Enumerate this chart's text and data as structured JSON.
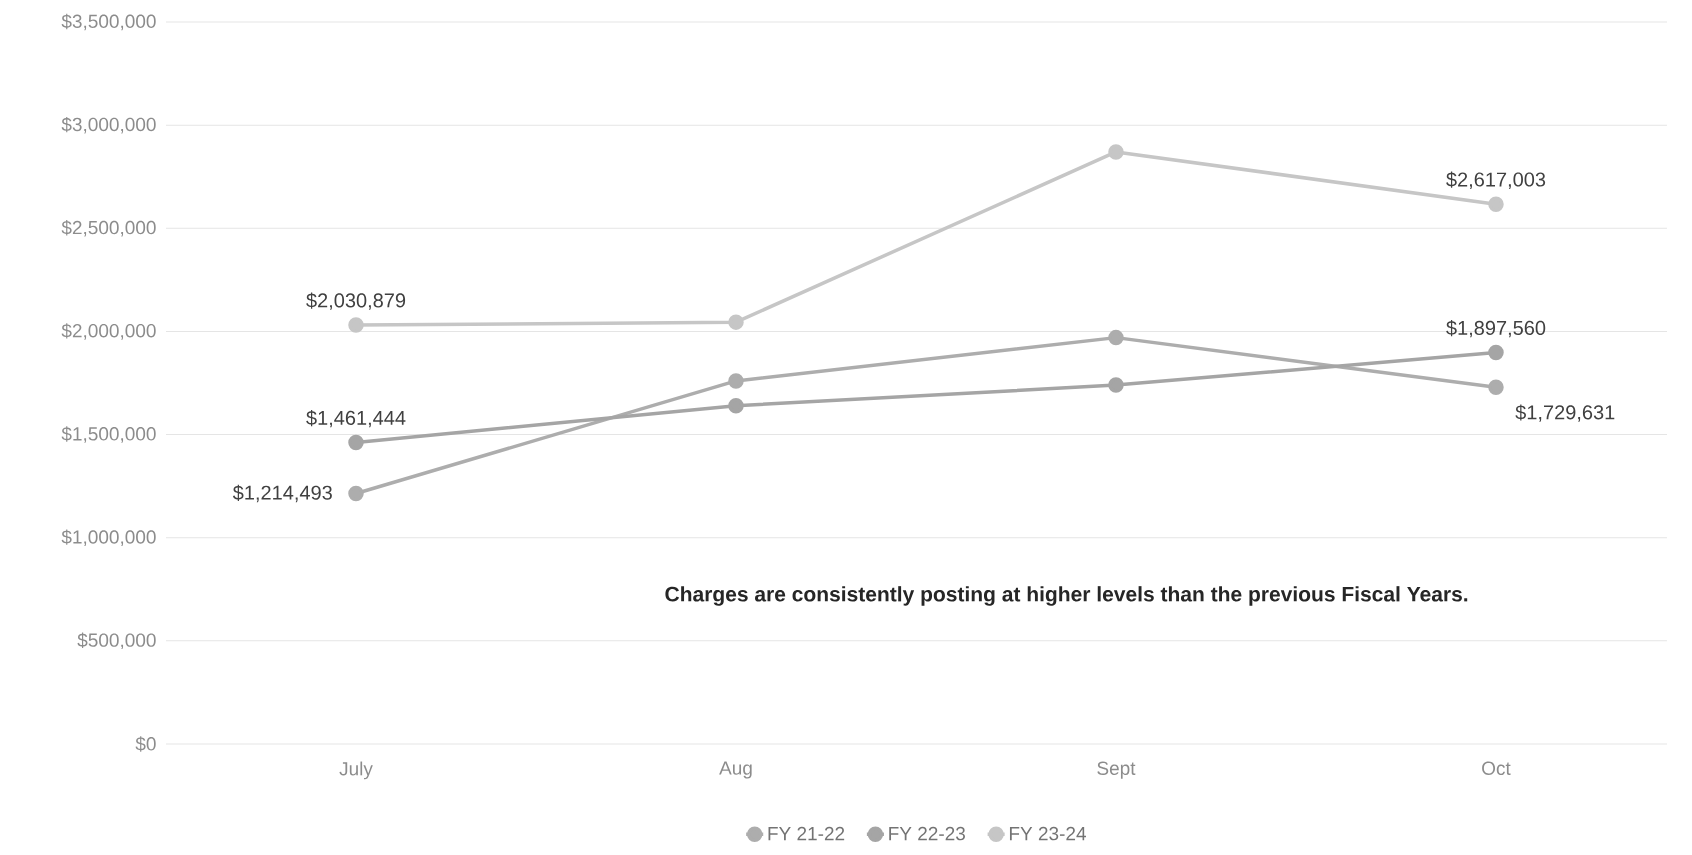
{
  "chart_data": {
    "type": "line",
    "categories": [
      "July",
      "Aug",
      "Sept",
      "Oct"
    ],
    "series": [
      {
        "name": "FY 21-22",
        "color": "#adadad",
        "values": [
          1214493,
          1760000,
          1970000,
          1729631
        ],
        "value_labels": [
          "$1,214,493",
          null,
          null,
          "$1,729,631"
        ]
      },
      {
        "name": "FY 22-23",
        "color": "#a5a5a5",
        "values": [
          1461444,
          1640000,
          1740000,
          1897560
        ],
        "value_labels": [
          "$1,461,444",
          null,
          null,
          "$1,897,560"
        ]
      },
      {
        "name": "FY 23-24",
        "color": "#c6c6c6",
        "values": [
          2030879,
          2045000,
          2870000,
          2617003
        ],
        "value_labels": [
          "$2,030,879",
          null,
          null,
          "$2,617,003"
        ]
      }
    ],
    "ylim": [
      0,
      3500000
    ],
    "yticks": [
      {
        "value": 0,
        "label": "$0"
      },
      {
        "value": 500000,
        "label": "$500,000"
      },
      {
        "value": 1000000,
        "label": "$1,000,000"
      },
      {
        "value": 1500000,
        "label": "$1,500,000"
      },
      {
        "value": 2000000,
        "label": "$2,000,000"
      },
      {
        "value": 2500000,
        "label": "$2,500,000"
      },
      {
        "value": 3000000,
        "label": "$3,000,000"
      },
      {
        "value": 3500000,
        "label": "$3,500,000"
      }
    ],
    "annotations": [
      "Charges are consistently posting at higher levels than the previous Fiscal Years."
    ],
    "grid": "y",
    "legend": "bottom",
    "marker": "circle",
    "line_style": "solid"
  }
}
